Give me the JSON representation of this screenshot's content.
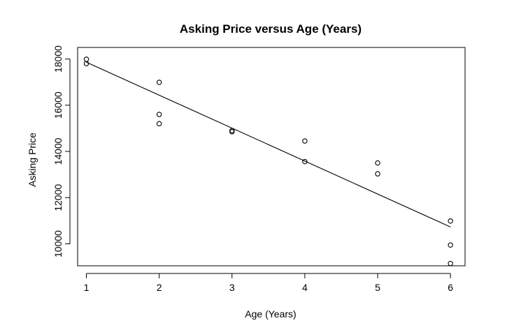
{
  "chart_data": {
    "type": "scatter",
    "title": "Asking Price versus Age (Years)",
    "xlabel": "Age (Years)",
    "ylabel": "Asking Price",
    "x_ticks": [
      1,
      2,
      3,
      4,
      5,
      6
    ],
    "y_ticks": [
      10000,
      12000,
      14000,
      16000,
      18000
    ],
    "xlim": [
      0.88,
      6.2
    ],
    "ylim": [
      9050,
      18500
    ],
    "grid": false,
    "points": [
      {
        "x": 1,
        "y": 17990
      },
      {
        "x": 1,
        "y": 17800
      },
      {
        "x": 2,
        "y": 16990
      },
      {
        "x": 2,
        "y": 15600
      },
      {
        "x": 2,
        "y": 15200
      },
      {
        "x": 3,
        "y": 14900
      },
      {
        "x": 3,
        "y": 14850
      },
      {
        "x": 4,
        "y": 14450
      },
      {
        "x": 4,
        "y": 13560
      },
      {
        "x": 5,
        "y": 13500
      },
      {
        "x": 5,
        "y": 13030
      },
      {
        "x": 6,
        "y": 10990
      },
      {
        "x": 6,
        "y": 9950
      },
      {
        "x": 6,
        "y": 9150
      }
    ],
    "fit_line": {
      "x": [
        1,
        6
      ],
      "y": [
        17860,
        10730
      ]
    },
    "colors": {
      "point_stroke": "#000000",
      "line": "#000000",
      "frame": "#000000"
    }
  }
}
